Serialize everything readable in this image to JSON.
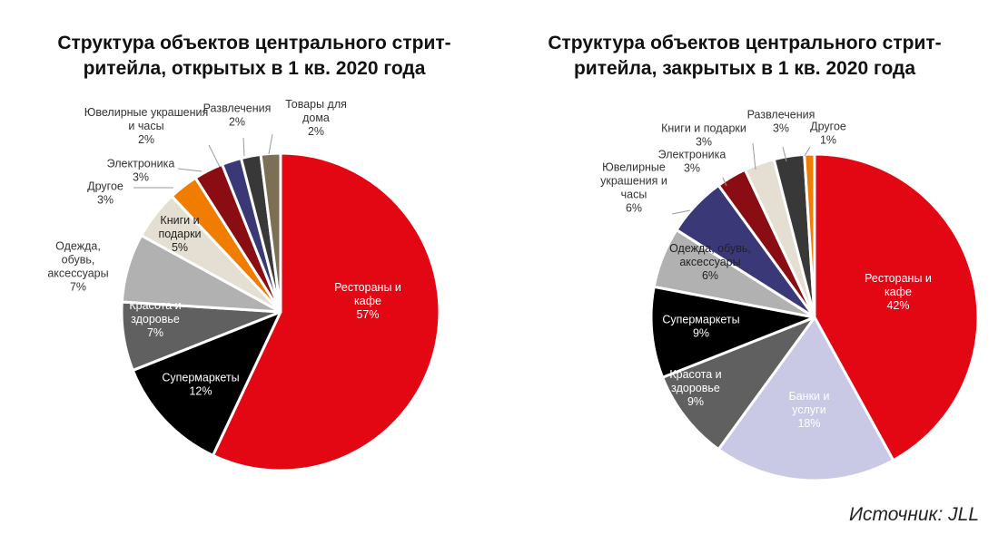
{
  "chart_data": [
    {
      "type": "pie",
      "title_lines": [
        "Структура объектов центрального стрит-",
        "ритейла, открытых в 1 кв. 2020 года"
      ],
      "slices": [
        {
          "label": [
            "Рестораны и",
            "кафе"
          ],
          "value_text": "57%",
          "value": 57,
          "color": "#e30613"
        },
        {
          "label": [
            "Супермаркеты"
          ],
          "value_text": "12%",
          "value": 12,
          "color": "#000000"
        },
        {
          "label": [
            "Красота и",
            "здоровье"
          ],
          "value_text": "7%",
          "value": 7,
          "color": "#606060"
        },
        {
          "label": [
            "Одежда,",
            "обувь,",
            "аксессуары"
          ],
          "value_text": "7%",
          "value": 7,
          "color": "#b1b1b1"
        },
        {
          "label": [
            "Книги и",
            "подарки"
          ],
          "value_text": "5%",
          "value": 5,
          "color": "#e5dfd3"
        },
        {
          "label": [
            "Другое"
          ],
          "value_text": "3%",
          "value": 3,
          "color": "#f07d00"
        },
        {
          "label": [
            "Электроника"
          ],
          "value_text": "3%",
          "value": 3,
          "color": "#8a0d14"
        },
        {
          "label": [
            "Ювелирные украшения",
            "и часы"
          ],
          "value_text": "2%",
          "value": 2,
          "color": "#3a3877"
        },
        {
          "label": [
            "Развлечения"
          ],
          "value_text": "2%",
          "value": 2,
          "color": "#383838"
        },
        {
          "label": [
            "Товары для",
            "дома"
          ],
          "value_text": "2%",
          "value": 2,
          "color": "#7c6f55"
        }
      ]
    },
    {
      "type": "pie",
      "title_lines": [
        "Структура объектов центрального стрит-",
        "ритейла, закрытых в 1 кв. 2020 года"
      ],
      "slices": [
        {
          "label": [
            "Рестораны и",
            "кафе"
          ],
          "value_text": "42%",
          "value": 42,
          "color": "#e30613"
        },
        {
          "label": [
            "Банки и",
            "услуги"
          ],
          "value_text": "18%",
          "value": 18,
          "color": "#c9c9e6"
        },
        {
          "label": [
            "Красота и",
            "здоровье"
          ],
          "value_text": "9%",
          "value": 9,
          "color": "#606060"
        },
        {
          "label": [
            "Супермаркеты"
          ],
          "value_text": "9%",
          "value": 9,
          "color": "#000000"
        },
        {
          "label": [
            "Одежда, обувь,",
            "аксессуары"
          ],
          "value_text": "6%",
          "value": 6,
          "color": "#b1b1b1"
        },
        {
          "label": [
            "Ювелирные",
            "украшения и",
            "часы"
          ],
          "value_text": "6%",
          "value": 6,
          "color": "#3a3877"
        },
        {
          "label": [
            "Электроника"
          ],
          "value_text": "3%",
          "value": 3,
          "color": "#8a0d14"
        },
        {
          "label": [
            "Книги и подарки"
          ],
          "value_text": "3%",
          "value": 3,
          "color": "#e5dfd3"
        },
        {
          "label": [
            "Развлечения"
          ],
          "value_text": "3%",
          "value": 3,
          "color": "#383838"
        },
        {
          "label": [
            "Другое"
          ],
          "value_text": "1%",
          "value": 1,
          "color": "#f07d00"
        }
      ]
    }
  ],
  "source": "Источник: JLL"
}
